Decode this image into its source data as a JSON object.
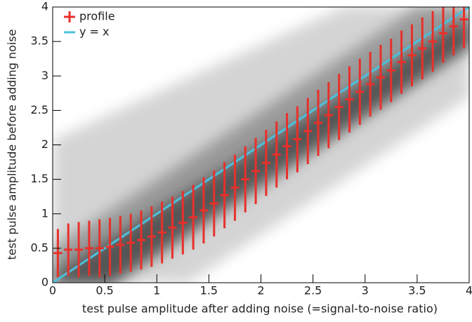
{
  "chart_data": {
    "type": "errorbar",
    "xlabel": "test pulse amplitude after adding noise (=signal-to-noise ratio)",
    "ylabel": "test pulse amplitude before adding noise",
    "xlim": [
      0,
      4
    ],
    "ylim": [
      0,
      4
    ],
    "xticks": [
      0,
      0.5,
      1,
      1.5,
      2,
      2.5,
      3,
      3.5,
      4
    ],
    "yticks": [
      0,
      0.5,
      1,
      1.5,
      2,
      2.5,
      3,
      3.5,
      4
    ],
    "grid": false,
    "legend": "top-left",
    "series": [
      {
        "name": "profile",
        "color": "#e8302a",
        "style": "errorbar",
        "x": [
          0.05,
          0.15,
          0.25,
          0.35,
          0.45,
          0.55,
          0.65,
          0.75,
          0.85,
          0.95,
          1.05,
          1.15,
          1.25,
          1.35,
          1.45,
          1.55,
          1.65,
          1.75,
          1.85,
          1.95,
          2.05,
          2.15,
          2.25,
          2.35,
          2.45,
          2.55,
          2.65,
          2.75,
          2.85,
          2.95,
          3.05,
          3.15,
          3.25,
          3.35,
          3.45,
          3.55,
          3.65,
          3.75,
          3.85,
          3.95
        ],
        "values": [
          0.43,
          0.48,
          0.48,
          0.5,
          0.5,
          0.52,
          0.55,
          0.58,
          0.62,
          0.67,
          0.73,
          0.8,
          0.87,
          0.95,
          1.05,
          1.15,
          1.27,
          1.38,
          1.5,
          1.62,
          1.74,
          1.86,
          1.98,
          2.08,
          2.2,
          2.32,
          2.43,
          2.55,
          2.66,
          2.77,
          2.88,
          2.98,
          3.08,
          3.2,
          3.3,
          3.4,
          3.5,
          3.62,
          3.72,
          3.82
        ],
        "errors": [
          0.35,
          0.38,
          0.4,
          0.4,
          0.42,
          0.42,
          0.42,
          0.42,
          0.43,
          0.44,
          0.45,
          0.45,
          0.46,
          0.47,
          0.48,
          0.48,
          0.48,
          0.48,
          0.48,
          0.48,
          0.48,
          0.48,
          0.48,
          0.48,
          0.48,
          0.48,
          0.48,
          0.48,
          0.48,
          0.48,
          0.47,
          0.47,
          0.46,
          0.46,
          0.45,
          0.45,
          0.44,
          0.43,
          0.42,
          0.42
        ]
      },
      {
        "name": "y = x",
        "color": "#4cc0dc",
        "style": "line",
        "x": [
          0,
          4
        ],
        "values": [
          0,
          4
        ]
      }
    ]
  }
}
